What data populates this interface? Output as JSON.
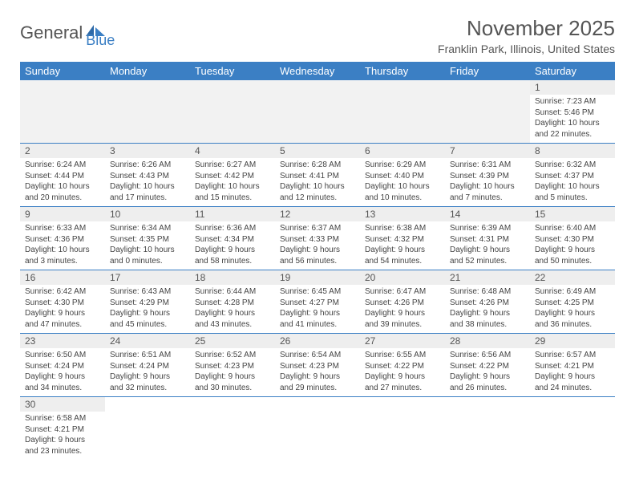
{
  "brand": {
    "part1": "General",
    "part2": "Blue"
  },
  "title": "November 2025",
  "location": "Franklin Park, Illinois, United States",
  "colors": {
    "header_bg": "#3b7fc4",
    "header_text": "#ffffff",
    "daynum_bg": "#eeeeee",
    "empty_bg": "#f2f2f2",
    "border": "#3b7fc4",
    "text": "#444444"
  },
  "day_labels": [
    "Sunday",
    "Monday",
    "Tuesday",
    "Wednesday",
    "Thursday",
    "Friday",
    "Saturday"
  ],
  "weeks": [
    [
      null,
      null,
      null,
      null,
      null,
      null,
      {
        "n": "1",
        "sr": "7:23 AM",
        "ss": "5:46 PM",
        "dl": "10 hours and 22 minutes."
      }
    ],
    [
      {
        "n": "2",
        "sr": "6:24 AM",
        "ss": "4:44 PM",
        "dl": "10 hours and 20 minutes."
      },
      {
        "n": "3",
        "sr": "6:26 AM",
        "ss": "4:43 PM",
        "dl": "10 hours and 17 minutes."
      },
      {
        "n": "4",
        "sr": "6:27 AM",
        "ss": "4:42 PM",
        "dl": "10 hours and 15 minutes."
      },
      {
        "n": "5",
        "sr": "6:28 AM",
        "ss": "4:41 PM",
        "dl": "10 hours and 12 minutes."
      },
      {
        "n": "6",
        "sr": "6:29 AM",
        "ss": "4:40 PM",
        "dl": "10 hours and 10 minutes."
      },
      {
        "n": "7",
        "sr": "6:31 AM",
        "ss": "4:39 PM",
        "dl": "10 hours and 7 minutes."
      },
      {
        "n": "8",
        "sr": "6:32 AM",
        "ss": "4:37 PM",
        "dl": "10 hours and 5 minutes."
      }
    ],
    [
      {
        "n": "9",
        "sr": "6:33 AM",
        "ss": "4:36 PM",
        "dl": "10 hours and 3 minutes."
      },
      {
        "n": "10",
        "sr": "6:34 AM",
        "ss": "4:35 PM",
        "dl": "10 hours and 0 minutes."
      },
      {
        "n": "11",
        "sr": "6:36 AM",
        "ss": "4:34 PM",
        "dl": "9 hours and 58 minutes."
      },
      {
        "n": "12",
        "sr": "6:37 AM",
        "ss": "4:33 PM",
        "dl": "9 hours and 56 minutes."
      },
      {
        "n": "13",
        "sr": "6:38 AM",
        "ss": "4:32 PM",
        "dl": "9 hours and 54 minutes."
      },
      {
        "n": "14",
        "sr": "6:39 AM",
        "ss": "4:31 PM",
        "dl": "9 hours and 52 minutes."
      },
      {
        "n": "15",
        "sr": "6:40 AM",
        "ss": "4:30 PM",
        "dl": "9 hours and 50 minutes."
      }
    ],
    [
      {
        "n": "16",
        "sr": "6:42 AM",
        "ss": "4:30 PM",
        "dl": "9 hours and 47 minutes."
      },
      {
        "n": "17",
        "sr": "6:43 AM",
        "ss": "4:29 PM",
        "dl": "9 hours and 45 minutes."
      },
      {
        "n": "18",
        "sr": "6:44 AM",
        "ss": "4:28 PM",
        "dl": "9 hours and 43 minutes."
      },
      {
        "n": "19",
        "sr": "6:45 AM",
        "ss": "4:27 PM",
        "dl": "9 hours and 41 minutes."
      },
      {
        "n": "20",
        "sr": "6:47 AM",
        "ss": "4:26 PM",
        "dl": "9 hours and 39 minutes."
      },
      {
        "n": "21",
        "sr": "6:48 AM",
        "ss": "4:26 PM",
        "dl": "9 hours and 38 minutes."
      },
      {
        "n": "22",
        "sr": "6:49 AM",
        "ss": "4:25 PM",
        "dl": "9 hours and 36 minutes."
      }
    ],
    [
      {
        "n": "23",
        "sr": "6:50 AM",
        "ss": "4:24 PM",
        "dl": "9 hours and 34 minutes."
      },
      {
        "n": "24",
        "sr": "6:51 AM",
        "ss": "4:24 PM",
        "dl": "9 hours and 32 minutes."
      },
      {
        "n": "25",
        "sr": "6:52 AM",
        "ss": "4:23 PM",
        "dl": "9 hours and 30 minutes."
      },
      {
        "n": "26",
        "sr": "6:54 AM",
        "ss": "4:23 PM",
        "dl": "9 hours and 29 minutes."
      },
      {
        "n": "27",
        "sr": "6:55 AM",
        "ss": "4:22 PM",
        "dl": "9 hours and 27 minutes."
      },
      {
        "n": "28",
        "sr": "6:56 AM",
        "ss": "4:22 PM",
        "dl": "9 hours and 26 minutes."
      },
      {
        "n": "29",
        "sr": "6:57 AM",
        "ss": "4:21 PM",
        "dl": "9 hours and 24 minutes."
      }
    ],
    [
      {
        "n": "30",
        "sr": "6:58 AM",
        "ss": "4:21 PM",
        "dl": "9 hours and 23 minutes."
      },
      null,
      null,
      null,
      null,
      null,
      null
    ]
  ],
  "labels": {
    "sunrise": "Sunrise: ",
    "sunset": "Sunset: ",
    "daylight": "Daylight: "
  }
}
